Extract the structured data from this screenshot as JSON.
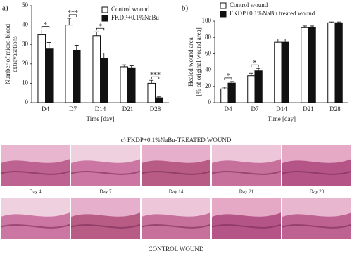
{
  "chart_data": [
    {
      "type": "bar",
      "panel": "a)",
      "ylabel": [
        "Number of micro-blood",
        "extravasations"
      ],
      "xlabel": "Time [day]",
      "categories": [
        "D4",
        "D7",
        "D14",
        "D21",
        "D28"
      ],
      "series": [
        {
          "name": "Control wound",
          "color": "#ffffff",
          "values": [
            35,
            40,
            34.5,
            18.5,
            10
          ],
          "errors": [
            2.5,
            3.5,
            2,
            1,
            1.5
          ]
        },
        {
          "name": "FKDP+0.1%NaBu",
          "color": "#111111",
          "values": [
            28,
            27,
            23,
            18,
            2.5
          ],
          "errors": [
            3,
            2.5,
            2.5,
            1,
            0.5
          ]
        }
      ],
      "significance": [
        "*",
        "***",
        "*",
        null,
        "***"
      ],
      "ylim": [
        0,
        50
      ],
      "yticks": [
        0,
        10,
        20,
        30,
        40,
        50
      ],
      "legend": "upper right"
    },
    {
      "type": "bar",
      "panel": "b)",
      "ylabel": [
        "Healed wound area",
        "[% of original wound area]"
      ],
      "xlabel": "Time [day]",
      "categories": [
        "D4",
        "D7",
        "D14",
        "D21",
        "D28"
      ],
      "series": [
        {
          "name": "Control wound",
          "color": "#ffffff",
          "values": [
            17,
            33,
            74,
            92,
            98
          ],
          "errors": [
            2,
            3,
            4,
            2,
            1
          ]
        },
        {
          "name": "FKDP+0.1%NaBu treated wound",
          "color": "#111111",
          "values": [
            24,
            39,
            74,
            92,
            98
          ],
          "errors": [
            2,
            3,
            4,
            2,
            1
          ]
        }
      ],
      "significance": [
        "*",
        "*",
        null,
        null,
        null
      ],
      "ylim": [
        0,
        100
      ],
      "yticks": [
        0,
        20,
        40,
        60,
        80,
        100
      ],
      "legend": "upper left"
    }
  ],
  "panel_c": {
    "title": "c) FKDP+0.1%NaBu-TREATED WOUND",
    "days": [
      "Day 4",
      "Day 7",
      "Day 14",
      "Day 21",
      "Day 28"
    ],
    "bottom_title": "CONTROL WOUND"
  }
}
